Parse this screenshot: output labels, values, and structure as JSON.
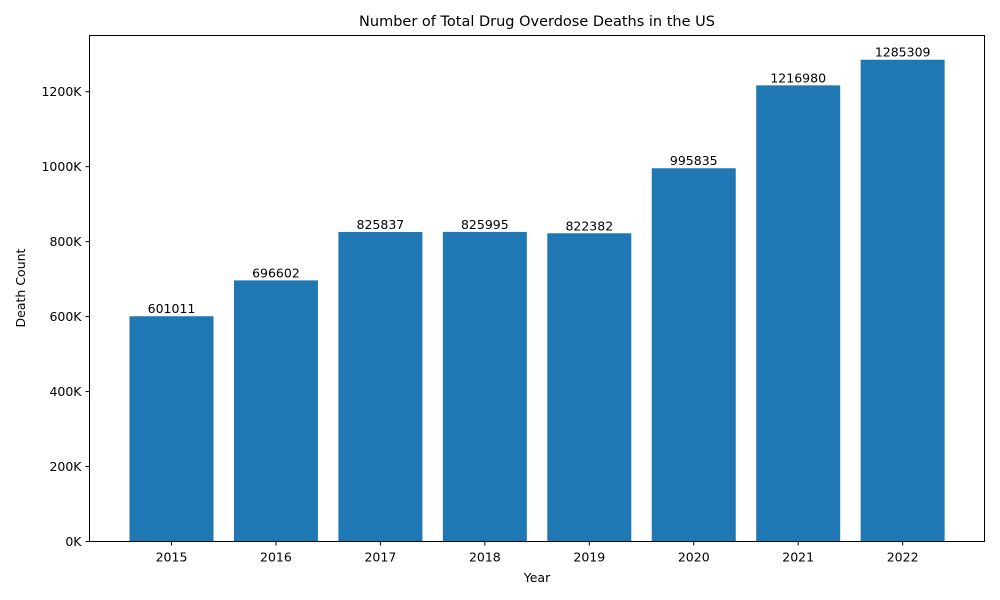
{
  "chart_data": {
    "type": "bar",
    "title": "Number of Total Drug Overdose Deaths in the US",
    "xlabel": "Year",
    "ylabel": "Death Count",
    "categories": [
      "2015",
      "2016",
      "2017",
      "2018",
      "2019",
      "2020",
      "2021",
      "2022"
    ],
    "values": [
      601011,
      696602,
      825837,
      825995,
      822382,
      995835,
      1216980,
      1285309
    ],
    "data_labels": [
      "601011",
      "696602",
      "825837",
      "825995",
      "822382",
      "995835",
      "1216980",
      "1285309"
    ],
    "ylim": [
      0,
      1350000
    ],
    "yticks": [
      {
        "value": 0,
        "label": "0K"
      },
      {
        "value": 200000,
        "label": "200K"
      },
      {
        "value": 400000,
        "label": "400K"
      },
      {
        "value": 600000,
        "label": "600K"
      },
      {
        "value": 800000,
        "label": "800K"
      },
      {
        "value": 1000000,
        "label": "1000K"
      },
      {
        "value": 1200000,
        "label": "1200K"
      }
    ],
    "grid": false,
    "bar_color": "#1f77b4"
  }
}
